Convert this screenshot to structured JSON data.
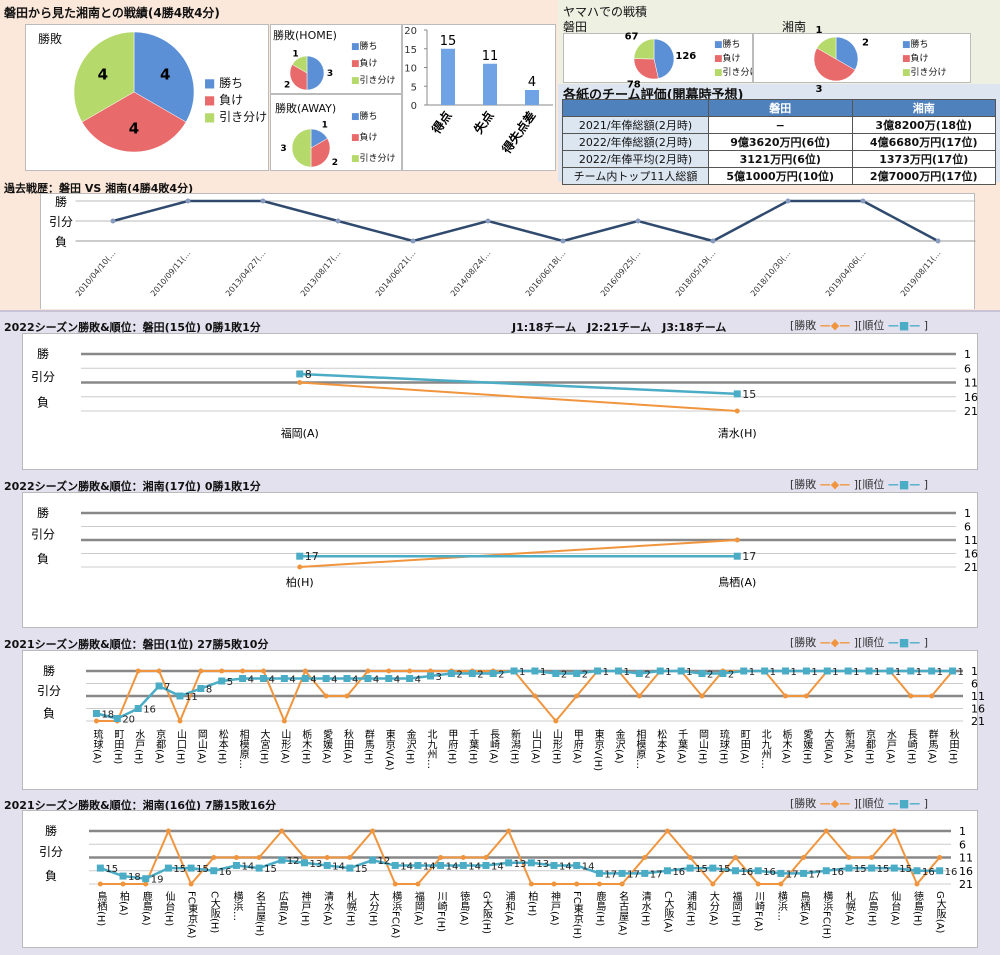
{
  "colors": {
    "win": "#5b8fd6",
    "loss": "#e86a6a",
    "draw": "#b6d96b",
    "result_line": "#f0953d",
    "rank_line": "#4bacc6",
    "history_line": "#2f4a6e",
    "table_header": "#4f81bd"
  },
  "legend": {
    "win": "勝ち",
    "loss": "負け",
    "draw": "引き分け"
  },
  "head_to_head": {
    "title": "磐田から見た湘南との戦績(4勝4敗4分)",
    "overall": {
      "title": "勝敗",
      "values": [
        4,
        4,
        4
      ]
    },
    "home": {
      "title": "勝敗(HOME)",
      "values": [
        3,
        2,
        1
      ]
    },
    "away": {
      "title": "勝敗(AWAY)",
      "values": [
        1,
        2,
        3
      ]
    },
    "goals": {
      "categories": [
        "得点",
        "失点",
        "得失点差"
      ],
      "values": [
        15,
        11,
        4
      ],
      "ylim": [
        0,
        20
      ],
      "ticks": [
        0,
        5,
        10,
        15,
        20
      ]
    }
  },
  "yamaha": {
    "title": "ヤマハでの戦積",
    "iwata": {
      "label": "磐田",
      "values": [
        126,
        78,
        67
      ]
    },
    "shonan": {
      "label": "湘南",
      "values": [
        2,
        3,
        1
      ]
    }
  },
  "evaluation": {
    "title": "各紙のチーム評価(開幕時予想)",
    "columns": [
      "磐田",
      "湘南"
    ],
    "rows": [
      {
        "label": "2021/年俸総額(2月時)",
        "iwata": "−",
        "shonan": "3億8200万(18位)"
      },
      {
        "label": "2022/年俸総額(2月時)",
        "iwata": "9億3620万円(6位)",
        "shonan": "4億6680万円(17位)"
      },
      {
        "label": "2022/年俸平均(2月時)",
        "iwata": "3121万円(6位)",
        "shonan": "1373万円(17位)"
      },
      {
        "label": "チーム内トップ11人総額",
        "iwata": "5億1000万円(10位)",
        "shonan": "2億7000万円(17位)"
      }
    ]
  },
  "common": {
    "result_levels": [
      "勝",
      "引分",
      "負"
    ],
    "rank_ticks": [
      1,
      6,
      11,
      16,
      21
    ],
    "legend_result": "[勝敗",
    "legend_rank": "][順位",
    "legend_close": "]",
    "league_note": "J1:18チーム　J2:21チーム　J3:18チーム"
  },
  "chart_data": [
    {
      "id": "hist",
      "type": "line",
      "title": "過去戦歴：磐田 VS 湘南(4勝4敗4分)",
      "categories": [
        "2010/04/10(…",
        "2010/09/11(…",
        "2013/04/27(…",
        "2013/08/17(…",
        "2014/06/21(…",
        "2014/08/24(…",
        "2016/06/18(…",
        "2016/09/25(…",
        "2018/05/19(…",
        "2018/10/30(…",
        "2019/04/06(…",
        "2019/08/11(…"
      ],
      "results": [
        "D",
        "W",
        "W",
        "D",
        "L",
        "D",
        "L",
        "D",
        "L",
        "W",
        "W",
        "L"
      ]
    },
    {
      "id": "i22",
      "type": "line",
      "title": "2022シーズン勝敗&順位：磐田(15位) 0勝1敗1分",
      "categories": [
        "福岡(A)",
        "清水(H)"
      ],
      "results": [
        "D",
        "L"
      ],
      "ranks": [
        8,
        15
      ]
    },
    {
      "id": "s22",
      "type": "line",
      "title": "2022シーズン勝敗&順位：湘南(17位) 0勝1敗1分",
      "categories": [
        "柏(H)",
        "鳥栖(A)"
      ],
      "results": [
        "L",
        "D"
      ],
      "ranks": [
        17,
        17
      ]
    },
    {
      "id": "i21",
      "type": "line",
      "title": "2021シーズン勝敗&順位：磐田(1位) 27勝5敗10分",
      "categories": [
        "琉球(A)",
        "町田(H)",
        "水戸(H)",
        "京都(A)",
        "山口(H)",
        "岡山(A)",
        "松本(H)",
        "相模原…",
        "大宮(H)",
        "山形(A)",
        "栃木(H)",
        "愛媛(A)",
        "秋田(A)",
        "群馬(H)",
        "東京V(A)",
        "金沢(H)",
        "北九州…",
        "甲府(H)",
        "千葉(H)",
        "長崎(A)",
        "新潟(H)",
        "山口(A)",
        "山形(H)",
        "甲府(A)",
        "東京V(H)",
        "金沢(A)",
        "相模原…",
        "松本(A)",
        "千葉(A)",
        "岡山(H)",
        "琉球(H)",
        "町田(A)",
        "北九州…",
        "栃木(A)",
        "愛媛(H)",
        "大宮(A)",
        "新潟(A)",
        "京都(H)",
        "水戸(A)",
        "長崎(H)",
        "群馬(A)",
        "秋田(H)"
      ],
      "results": [
        "L",
        "L",
        "W",
        "W",
        "L",
        "W",
        "W",
        "W",
        "W",
        "L",
        "W",
        "D",
        "D",
        "W",
        "W",
        "W",
        "W",
        "W",
        "W",
        "W",
        "W",
        "D",
        "L",
        "D",
        "W",
        "W",
        "D",
        "W",
        "W",
        "D",
        "W",
        "W",
        "W",
        "D",
        "D",
        "W",
        "W",
        "W",
        "W",
        "D",
        "D",
        "W"
      ],
      "ranks": [
        18,
        20,
        16,
        7,
        11,
        8,
        5,
        4,
        4,
        4,
        4,
        4,
        4,
        4,
        4,
        4,
        3,
        2,
        2,
        2,
        1,
        1,
        2,
        2,
        1,
        1,
        2,
        1,
        1,
        2,
        2,
        1,
        1,
        1,
        1,
        1,
        1,
        1,
        1,
        1,
        1,
        1
      ]
    },
    {
      "id": "s21",
      "type": "line",
      "title": "2021シーズン勝敗&順位：湘南(16位) 7勝15敗16分",
      "categories": [
        "鳥栖(H)",
        "柏(A)",
        "鹿島(A)",
        "仙台(H)",
        "FC東京(A)",
        "C大阪(H)",
        "横浜…",
        "名古屋(H)",
        "広島(A)",
        "神戸(H)",
        "清水(A)",
        "札幌(H)",
        "大分(H)",
        "横浜FC(A)",
        "福岡(A)",
        "川崎F(H)",
        "徳島(A)",
        "G大阪(H)",
        "浦和(A)",
        "柏(H)",
        "神戸(A)",
        "FC東京(H)",
        "鹿島(H)",
        "名古屋(A)",
        "清水(H)",
        "C大阪(A)",
        "浦和(H)",
        "大分(A)",
        "福岡(H)",
        "川崎F(A)",
        "横浜…",
        "鳥栖(A)",
        "横浜FC(H)",
        "札幌(A)",
        "広島(H)",
        "仙台(A)",
        "徳島(H)",
        "G大阪(A)"
      ],
      "results": [
        "L",
        "L",
        "L",
        "W",
        "L",
        "D",
        "D",
        "D",
        "W",
        "D",
        "D",
        "D",
        "W",
        "L",
        "L",
        "D",
        "D",
        "D",
        "W",
        "L",
        "L",
        "L",
        "L",
        "L",
        "D",
        "W",
        "D",
        "L",
        "D",
        "L",
        "L",
        "D",
        "W",
        "D",
        "D",
        "W",
        "L",
        "D"
      ],
      "ranks": [
        15,
        18,
        19,
        15,
        15,
        16,
        14,
        15,
        12,
        13,
        14,
        15,
        12,
        14,
        14,
        14,
        14,
        14,
        13,
        13,
        14,
        14,
        17,
        17,
        17,
        16,
        15,
        15,
        16,
        16,
        17,
        17,
        16,
        15,
        15,
        15,
        16,
        16
      ]
    }
  ]
}
